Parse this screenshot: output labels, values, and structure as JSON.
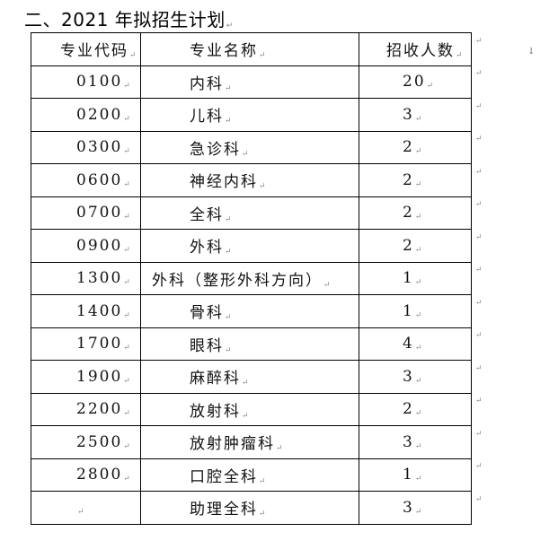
{
  "title": "二、2021 年拟招生计划",
  "table": {
    "headers": [
      "专业代码",
      "专业名称",
      "招收人数"
    ],
    "rows": [
      {
        "code": "0100",
        "name": "内科",
        "count": "20"
      },
      {
        "code": "0200",
        "name": "儿科",
        "count": "3"
      },
      {
        "code": "0300",
        "name": "急诊科",
        "count": "2"
      },
      {
        "code": "0600",
        "name": "神经内科",
        "count": "2"
      },
      {
        "code": "0700",
        "name": "全科",
        "count": "2"
      },
      {
        "code": "0900",
        "name": "外科",
        "count": "2"
      },
      {
        "code": "1300",
        "name": "外科（整形外科方向）",
        "count": "1"
      },
      {
        "code": "1400",
        "name": "骨科",
        "count": "1"
      },
      {
        "code": "1700",
        "name": "眼科",
        "count": "4"
      },
      {
        "code": "1900",
        "name": "麻醉科",
        "count": "3"
      },
      {
        "code": "2200",
        "name": "放射科",
        "count": "2"
      },
      {
        "code": "2500",
        "name": "放射肿瘤科",
        "count": "3"
      },
      {
        "code": "2800",
        "name": "口腔全科",
        "count": "1"
      },
      {
        "code": "",
        "name": "助理全科",
        "count": "3"
      }
    ]
  }
}
